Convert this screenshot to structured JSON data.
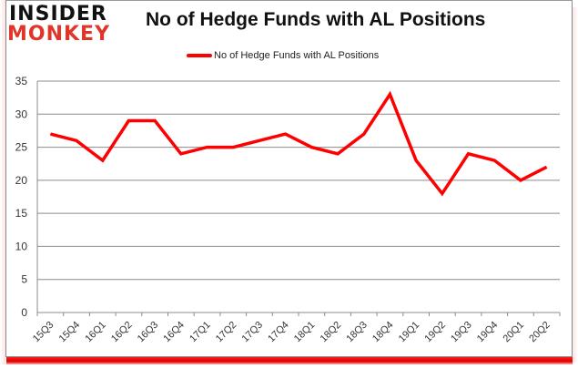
{
  "brand": {
    "logo_top": "INSIDER",
    "logo_bottom": "MONKEY",
    "logo_top_color": "#111111",
    "logo_bottom_color": "#e0362a"
  },
  "chart_data": {
    "type": "line",
    "title": "No of Hedge Funds with AL Positions",
    "xlabel": "",
    "ylabel": "",
    "ylim": [
      0,
      35
    ],
    "yticks": [
      0,
      5,
      10,
      15,
      20,
      25,
      30,
      35
    ],
    "grid": true,
    "legend_position": "top",
    "categories": [
      "15Q3",
      "15Q4",
      "16Q1",
      "16Q2",
      "16Q3",
      "16Q4",
      "17Q1",
      "17Q2",
      "17Q3",
      "17Q4",
      "18Q1",
      "18Q2",
      "18Q3",
      "18Q4",
      "19Q1",
      "19Q2",
      "19Q3",
      "19Q4",
      "20Q1",
      "20Q2"
    ],
    "series": [
      {
        "name": "No of Hedge Funds with AL Positions",
        "color": "#ff0000",
        "values": [
          27,
          26,
          23,
          29,
          29,
          24,
          25,
          25,
          26,
          27,
          25,
          24,
          27,
          33,
          23,
          18,
          24,
          23,
          20,
          22
        ]
      }
    ]
  },
  "colors": {
    "line": "#ff0000",
    "grid": "#8c8c8c",
    "bottom_bar": "#e00000"
  }
}
